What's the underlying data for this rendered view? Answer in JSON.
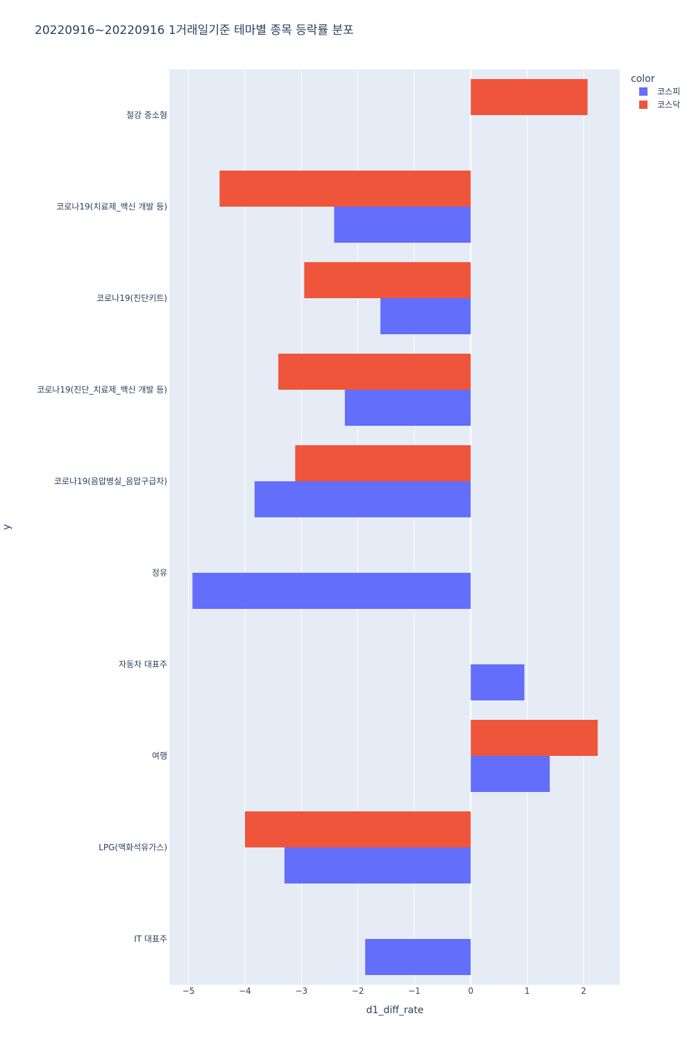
{
  "chart_data": {
    "type": "bar",
    "orientation": "horizontal",
    "barmode": "group",
    "title": "20220916~20220916 1거래일기준 테마별 종목 등락률 분포",
    "xlabel": "d1_diff_rate",
    "ylabel": "y",
    "xlim": [
      -5.34,
      2.64
    ],
    "xticks": [
      -5,
      -4,
      -3,
      -2,
      -1,
      0,
      1,
      2
    ],
    "xtick_labels": [
      "−5",
      "−4",
      "−3",
      "−2",
      "−1",
      "0",
      "1",
      "2"
    ],
    "grid": true,
    "legend": {
      "title": "color",
      "placement": "top-right"
    },
    "categories": [
      "철강 중소형",
      "코로나19(치료제_백신 개발 등)",
      "코로나19(진단키트)",
      "코로나19(진단_치료제_백신 개발 등)",
      "코로나19(음압병실_음압구급차)",
      "정유",
      "자동차 대표주",
      "여행",
      "LPG(액화석유가스)",
      "IT 대표주"
    ],
    "series": [
      {
        "name": "코스피",
        "color": "#636efa",
        "values": [
          null,
          -2.42,
          -1.6,
          -2.23,
          -3.83,
          -4.93,
          0.95,
          1.4,
          -3.3,
          -1.87
        ]
      },
      {
        "name": "코스닥",
        "color": "#ef553b",
        "values": [
          2.07,
          -4.45,
          -2.95,
          -3.41,
          -3.11,
          null,
          null,
          2.25,
          -4.0,
          null
        ]
      }
    ]
  }
}
